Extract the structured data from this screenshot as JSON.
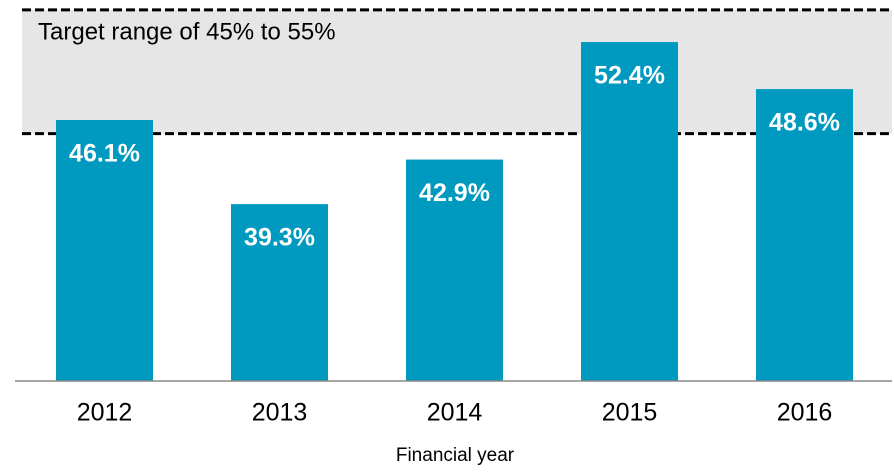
{
  "chart_data": {
    "type": "bar",
    "categories": [
      "2012",
      "2013",
      "2014",
      "2015",
      "2016"
    ],
    "values": [
      46.1,
      39.3,
      42.9,
      52.4,
      48.6
    ],
    "value_labels": [
      "46.1%",
      "39.3%",
      "42.9%",
      "52.4%",
      "48.6%"
    ],
    "color": "#0099bf",
    "ylim": [
      25,
      55.8
    ],
    "x_label": "Financial year",
    "target_range": [
      45,
      55
    ],
    "target_range_color": "#e6e6e6",
    "annotation": "Target range of 45% to 55%"
  }
}
